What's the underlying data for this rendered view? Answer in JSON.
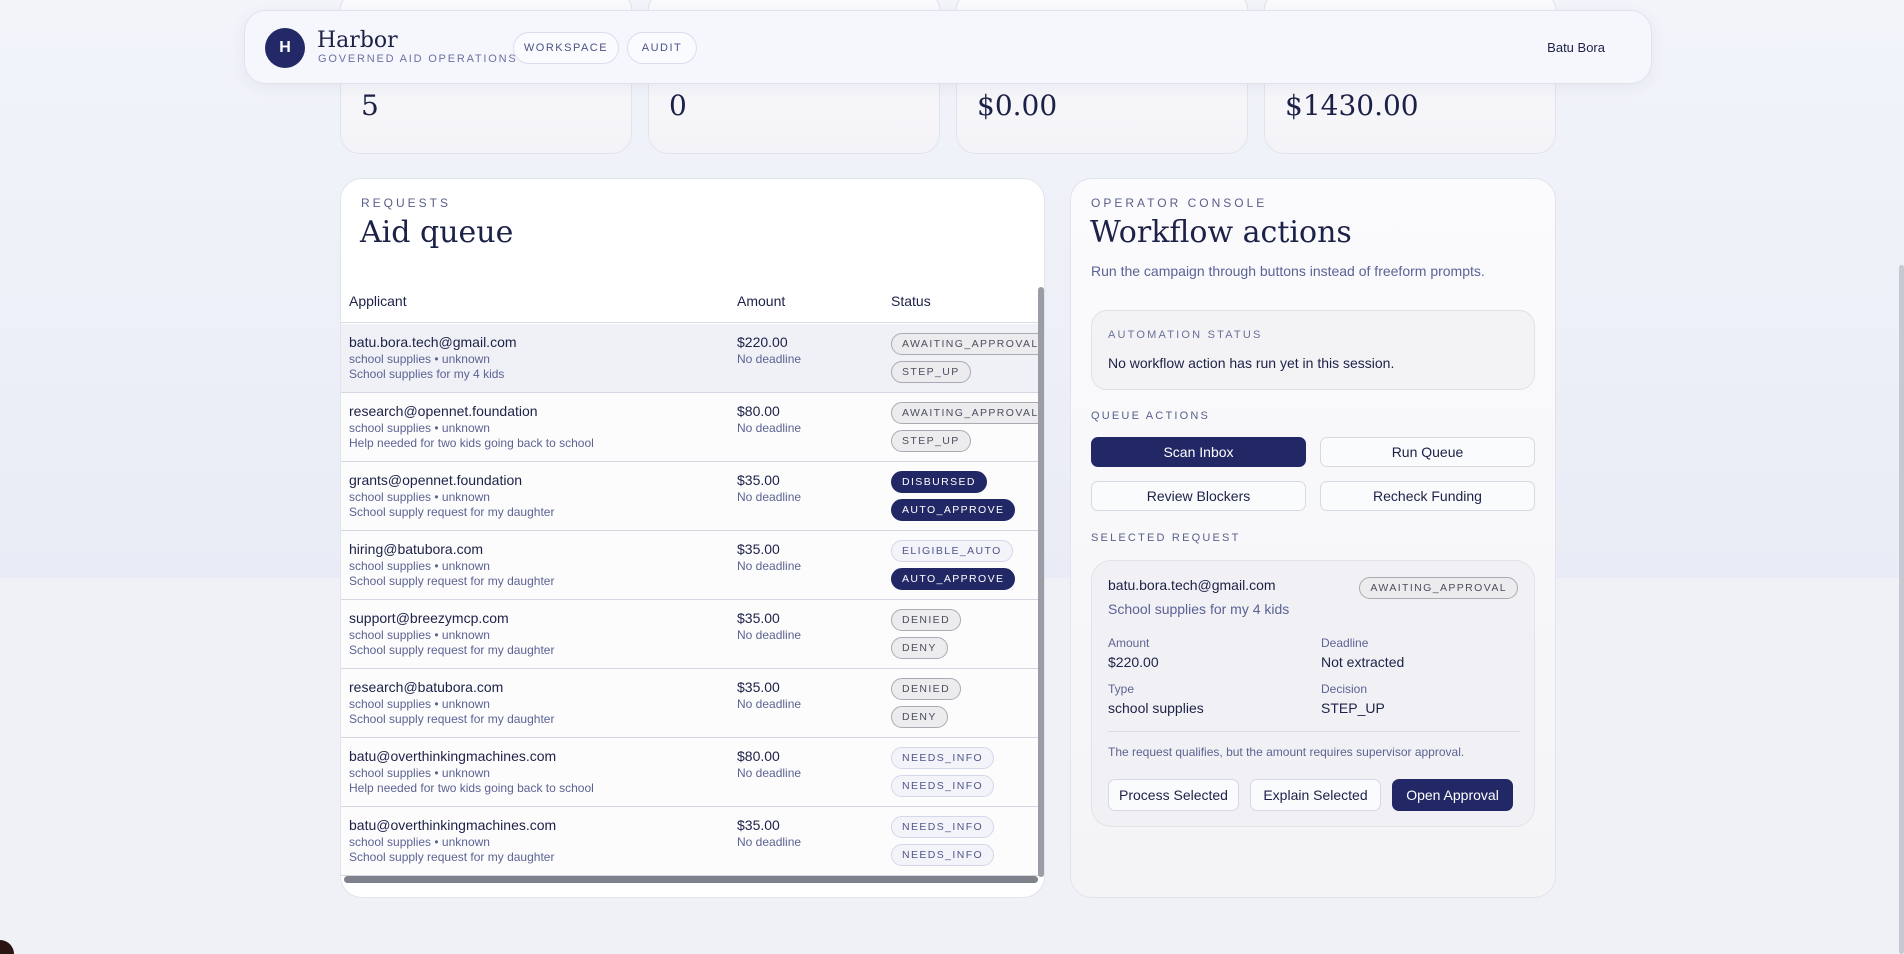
{
  "header": {
    "logo_letter": "H",
    "brand": "Harbor",
    "brand_sub": "GOVERNED AID OPERATIONS",
    "nav": [
      "WORKSPACE",
      "AUDIT"
    ],
    "user": "Batu Bora"
  },
  "stats": [
    "5",
    "0",
    "$0.00",
    "$1430.00"
  ],
  "requests": {
    "eyebrow": "REQUESTS",
    "title": "Aid queue",
    "columns": [
      "Applicant",
      "Amount",
      "Status"
    ],
    "rows": [
      {
        "email": "batu.bora.tech@gmail.com",
        "meta": "school supplies • unknown",
        "note": "School supplies for my 4 kids",
        "amount": "$220.00",
        "deadline": "No deadline",
        "status": "AWAITING_APPROVAL",
        "decision": "STEP_UP",
        "selected": true
      },
      {
        "email": "research@opennet.foundation",
        "meta": "school supplies • unknown",
        "note": "Help needed for two kids going back to school",
        "amount": "$80.00",
        "deadline": "No deadline",
        "status": "AWAITING_APPROVAL",
        "decision": "STEP_UP"
      },
      {
        "email": "grants@opennet.foundation",
        "meta": "school supplies • unknown",
        "note": "School supply request for my daughter",
        "amount": "$35.00",
        "deadline": "No deadline",
        "status": "DISBURSED",
        "decision": "AUTO_APPROVE"
      },
      {
        "email": "hiring@batubora.com",
        "meta": "school supplies • unknown",
        "note": "School supply request for my daughter",
        "amount": "$35.00",
        "deadline": "No deadline",
        "status": "ELIGIBLE_AUTO",
        "decision": "AUTO_APPROVE"
      },
      {
        "email": "support@breezymcp.com",
        "meta": "school supplies • unknown",
        "note": "School supply request for my daughter",
        "amount": "$35.00",
        "deadline": "No deadline",
        "status": "DENIED",
        "decision": "DENY"
      },
      {
        "email": "research@batubora.com",
        "meta": "school supplies • unknown",
        "note": "School supply request for my daughter",
        "amount": "$35.00",
        "deadline": "No deadline",
        "status": "DENIED",
        "decision": "DENY"
      },
      {
        "email": "batu@overthinkingmachines.com",
        "meta": "school supplies • unknown",
        "note": "Help needed for two kids going back to school",
        "amount": "$80.00",
        "deadline": "No deadline",
        "status": "NEEDS_INFO",
        "decision": "NEEDS_INFO"
      },
      {
        "email": "batu@overthinkingmachines.com",
        "meta": "school supplies • unknown",
        "note": "School supply request for my daughter",
        "amount": "$35.00",
        "deadline": "No deadline",
        "status": "NEEDS_INFO",
        "decision": "NEEDS_INFO"
      }
    ]
  },
  "console": {
    "eyebrow": "OPERATOR CONSOLE",
    "title": "Workflow actions",
    "subtitle": "Run the campaign through buttons instead of freeform prompts.",
    "automation_label": "AUTOMATION STATUS",
    "automation_text": "No workflow action has run yet in this session.",
    "queue_label": "QUEUE ACTIONS",
    "actions": [
      "Scan Inbox",
      "Run Queue",
      "Review Blockers",
      "Recheck Funding"
    ],
    "selected_label": "SELECTED REQUEST",
    "selected": {
      "email": "batu.bora.tech@gmail.com",
      "note": "School supplies for my 4 kids",
      "badge": "AWAITING_APPROVAL",
      "amount_label": "Amount",
      "amount": "$220.00",
      "deadline_label": "Deadline",
      "deadline": "Not extracted",
      "type_label": "Type",
      "type": "school supplies",
      "decision_label": "Decision",
      "decision": "STEP_UP",
      "message": "The request qualifies, but the amount requires supervisor approval.",
      "buttons": [
        "Process Selected",
        "Explain Selected",
        "Open Approval"
      ]
    }
  },
  "colors": {
    "accent": "#222865",
    "text": "#1c2147",
    "muted": "#5c6393"
  }
}
